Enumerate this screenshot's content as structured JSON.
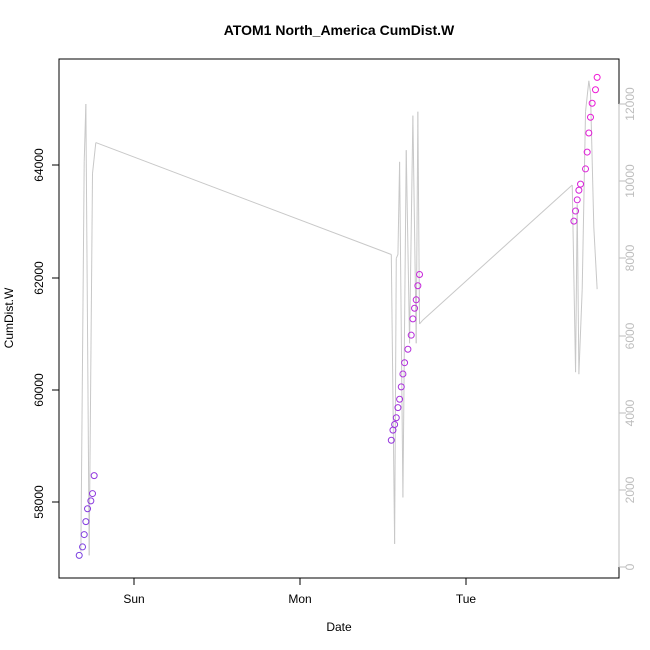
{
  "chart_data": {
    "type": "scatter",
    "title": "ATOM1 North_America CumDist.W",
    "xlabel": "Date",
    "ylabel": "CumDist.W",
    "x_ticks": [
      "Sun",
      "Mon",
      "Tue"
    ],
    "y_left_ticks": [
      "58000",
      "60000",
      "62000",
      "64000"
    ],
    "y_right_ticks": [
      "0",
      "2000",
      "4000",
      "6000",
      "8000",
      "10000",
      "12000"
    ],
    "x_range_days": [
      -0.4,
      2.9
    ],
    "y_left_range": [
      56950,
      65850
    ],
    "y_right_range": [
      -150,
      13000
    ],
    "grid": false,
    "colors": {
      "line": "#c8c8c8",
      "points_start": "#7a3fe0",
      "points_end": "#f019d6",
      "axis": "#000000",
      "right_axis": "#bdbdbd"
    },
    "series": [
      {
        "axis": "left",
        "style": "points",
        "x": [
          -0.33,
          -0.31,
          -0.3,
          -0.29,
          -0.28,
          -0.26,
          -0.25,
          -0.24,
          1.55,
          1.56,
          1.57,
          1.58,
          1.59,
          1.6,
          1.61,
          1.62,
          1.63,
          1.65,
          1.67,
          1.68,
          1.69,
          1.7,
          1.71,
          1.72,
          2.65,
          2.66,
          2.67,
          2.68,
          2.69,
          2.72,
          2.73,
          2.74,
          2.75,
          2.76,
          2.78,
          2.79
        ],
        "y": [
          57050,
          57200,
          57420,
          57650,
          57880,
          58020,
          58150,
          58470,
          59100,
          59280,
          59380,
          59500,
          59680,
          59830,
          60050,
          60280,
          60480,
          60720,
          60970,
          61260,
          61450,
          61600,
          61850,
          62050,
          63000,
          63180,
          63380,
          63550,
          63660,
          63930,
          64230,
          64570,
          64850,
          65100,
          65340,
          65560
        ]
      },
      {
        "axis": "right",
        "style": "line",
        "x": [
          -0.32,
          -0.3,
          -0.29,
          -0.27,
          -0.25,
          -0.23,
          1.55,
          1.57,
          1.58,
          1.59,
          1.6,
          1.62,
          1.64,
          1.66,
          1.68,
          1.7,
          1.71,
          1.72,
          1.74,
          2.64,
          2.66,
          2.67,
          2.68,
          2.7,
          2.72,
          2.74,
          2.75,
          2.77,
          2.79
        ],
        "y": [
          400,
          10500,
          12000,
          300,
          10200,
          11000,
          8100,
          600,
          8000,
          8100,
          10500,
          1800,
          10800,
          5800,
          11700,
          5800,
          11800,
          6300,
          6400,
          9900,
          5050,
          9400,
          5000,
          7200,
          11800,
          12600,
          12300,
          8800,
          7200
        ]
      }
    ]
  }
}
